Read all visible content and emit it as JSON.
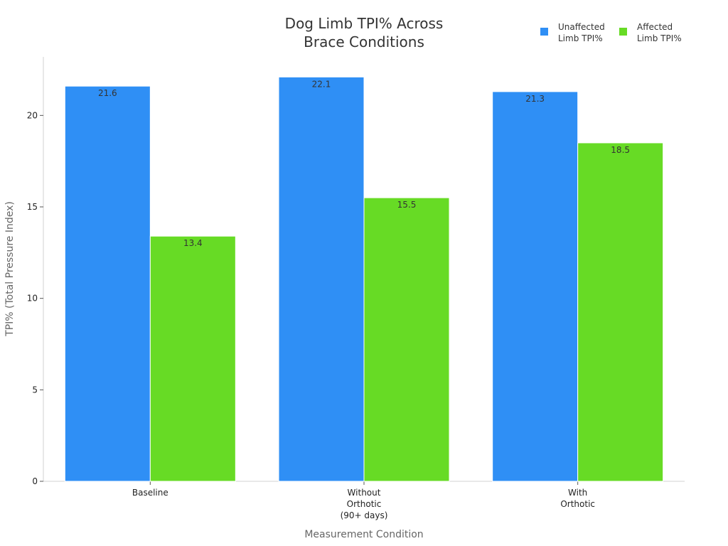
{
  "chart_data": {
    "type": "bar",
    "title": [
      "Dog Limb TPI% Across",
      "Brace Conditions"
    ],
    "xlabel": "Measurement Condition",
    "ylabel": "TPI% (Total Pressure Index)",
    "categories": [
      [
        "Baseline"
      ],
      [
        "Without",
        "Orthotic",
        "(90+ days)"
      ],
      [
        "With",
        "Orthotic"
      ]
    ],
    "series": [
      {
        "name": [
          "Unaffected",
          "Limb TPI%"
        ],
        "values": [
          21.6,
          22.1,
          21.3
        ],
        "labels": [
          "21.6",
          "22.1",
          "21.3"
        ],
        "color": "#2f8ff5"
      },
      {
        "name": [
          "Affected",
          "Limb TPI%"
        ],
        "values": [
          13.4,
          15.5,
          18.5
        ],
        "labels": [
          "13.4",
          "15.5",
          "18.5"
        ],
        "color": "#67db25"
      }
    ],
    "yticks": [
      0,
      5,
      10,
      15,
      20
    ],
    "ytick_labels": [
      "0",
      "5",
      "10",
      "15",
      "20"
    ],
    "ylim": [
      0,
      23.2
    ],
    "legend_position": "top-right",
    "grid": false
  }
}
